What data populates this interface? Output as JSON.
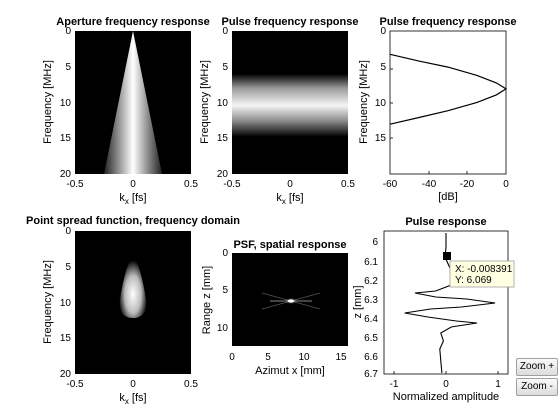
{
  "panels": {
    "aperture": {
      "title": "Aperture frequency response",
      "ylabel": "Frequency [MHz]",
      "xlabel_main": "k",
      "xlabel_sub": "x",
      "xlabel_unit": " [fs]",
      "xticks": [
        "-0.5",
        "0",
        "0.5"
      ],
      "yticks": [
        "0",
        "5",
        "10",
        "15",
        "20"
      ]
    },
    "pulse_freq": {
      "title": "Pulse frequency response",
      "ylabel": "Frequency [MHz]",
      "xlabel_main": "k",
      "xlabel_sub": "x",
      "xlabel_unit": " [fs]",
      "xticks": [
        "-0.5",
        "0",
        "0.5"
      ],
      "yticks": [
        "0",
        "5",
        "10",
        "15",
        "20"
      ]
    },
    "pulse_curve": {
      "title": "Pulse frequency response",
      "ylabel": "Frequency [MHz]",
      "xlabel": "[dB]",
      "xticks": [
        "-60",
        "-40",
        "-20",
        "0"
      ],
      "yticks": [
        "0",
        "5",
        "10",
        "15"
      ]
    },
    "psf_freq": {
      "title": "Point spread function, frequency domain",
      "ylabel": "Frequency [MHz]",
      "xlabel_main": "k",
      "xlabel_sub": "x",
      "xlabel_unit": " [fs]",
      "xticks": [
        "-0.5",
        "0",
        "0.5"
      ],
      "yticks": [
        "0",
        "5",
        "10",
        "15",
        "20"
      ]
    },
    "psf_spatial": {
      "title": "PSF, spatial response",
      "ylabel": "Range z [mm]",
      "xlabel": "Azimut x [mm]",
      "xticks": [
        "0",
        "5",
        "10",
        "15"
      ],
      "yticks": [
        "0",
        "5",
        "10"
      ]
    },
    "pulse_response": {
      "title": "Pulse response",
      "ylabel": "z [mm]",
      "xlabel": "Normalized amplitude",
      "xticks": [
        "-1",
        "0",
        "1"
      ],
      "yticks": [
        "6",
        "6.1",
        "6.2",
        "6.3",
        "6.4",
        "6.5",
        "6.6",
        "6.7"
      ]
    }
  },
  "datatip": {
    "x_text": "X: -0.008391",
    "y_text": "Y: 6.069"
  },
  "buttons": {
    "zoom_in": "Zoom +",
    "zoom_out": "Zoom -"
  },
  "colors": {
    "plot_background": "#000000",
    "curve": "#000000",
    "datatip_background": "#ffffe1"
  },
  "chart_data": [
    {
      "type": "heatmap",
      "title": "Aperture frequency response",
      "xlabel": "k_x [fs]",
      "ylabel": "Frequency [MHz]",
      "xlim": [
        -0.5,
        0.5
      ],
      "ylim": [
        0,
        20
      ],
      "description_values": {
        "apex_frequency_mhz": 0,
        "half_width_at_20mhz_fs": 0.25
      }
    },
    {
      "type": "heatmap",
      "title": "Pulse frequency response",
      "xlabel": "k_x [fs]",
      "ylabel": "Frequency [MHz]",
      "xlim": [
        -0.5,
        0.5
      ],
      "ylim": [
        0,
        20
      ],
      "description_values": {
        "band_start_mhz": 4.5,
        "band_end_mhz": 11,
        "peak_mhz": 7.5
      }
    },
    {
      "type": "line",
      "title": "Pulse frequency response",
      "xlabel": "[dB]",
      "ylabel": "Frequency [MHz]",
      "xlim": [
        -60,
        0
      ],
      "ylim": [
        0,
        19
      ],
      "series": [
        {
          "x": [
            -60,
            -45,
            -30,
            -15,
            -5,
            0,
            -5,
            -15,
            -30,
            -45,
            -60
          ],
          "y": [
            3.1,
            4.0,
            4.8,
            5.9,
            6.9,
            7.7,
            8.5,
            9.5,
            10.6,
            11.5,
            12.4
          ]
        }
      ]
    },
    {
      "type": "heatmap",
      "title": "Point spread function, frequency domain",
      "xlabel": "k_x [fs]",
      "ylabel": "Frequency [MHz]",
      "xlim": [
        -0.5,
        0.5
      ],
      "ylim": [
        0,
        20
      ],
      "description_values": {
        "blob_top_mhz": 4,
        "blob_bottom_mhz": 11,
        "blob_peak_mhz": 8
      }
    },
    {
      "type": "heatmap",
      "title": "PSF, spatial response",
      "xlabel": "Azimut x [mm]",
      "ylabel": "Range z [mm]",
      "xlim": [
        0,
        16
      ],
      "ylim": [
        0,
        12.5
      ],
      "description_values": {
        "center_x_mm": 7.7,
        "center_z_mm": 6.07
      }
    },
    {
      "type": "line",
      "title": "Pulse response",
      "xlabel": "Normalized amplitude",
      "ylabel": "z [mm]",
      "xlim": [
        -1.2,
        1.2
      ],
      "ylim": [
        6.0,
        6.7
      ],
      "series": [
        {
          "x": [
            0,
            0,
            -0.02,
            0.05,
            0.12,
            0.25,
            0.1,
            -0.2,
            -0.6,
            -0.2,
            0.4,
            0.95,
            0.3,
            -0.3,
            -0.8,
            -0.35,
            0.2,
            0.6,
            0.1,
            -0.1,
            -0.05,
            -0.12,
            -0.1,
            -0.08
          ],
          "y": [
            6.0,
            6.07,
            6.12,
            6.16,
            6.2,
            6.23,
            6.26,
            6.29,
            6.3,
            6.32,
            6.33,
            6.35,
            6.37,
            6.38,
            6.4,
            6.42,
            6.44,
            6.45,
            6.47,
            6.5,
            6.54,
            6.58,
            6.64,
            6.7
          ]
        }
      ],
      "datatip": {
        "x": -0.008391,
        "y": 6.069
      }
    }
  ]
}
